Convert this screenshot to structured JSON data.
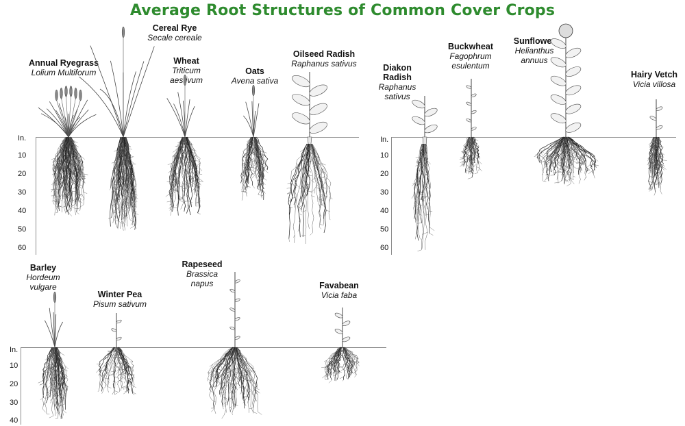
{
  "title": "Average Root Structures of Common Cover Crops",
  "depth_axis": {
    "unit": "In.",
    "ticks": [
      "10",
      "20",
      "30",
      "40",
      "50",
      "60"
    ],
    "ticks_short": [
      "10",
      "20",
      "30",
      "40"
    ]
  },
  "crops": [
    {
      "name": "Annual Ryegrass",
      "scientific": "Lolium Multiforum"
    },
    {
      "name": "Cereal Rye",
      "scientific": "Secale cereale"
    },
    {
      "name": "Wheat",
      "scientific_1": "Triticum",
      "scientific_2": "aestivum"
    },
    {
      "name": "Oats",
      "scientific": "Avena sativa"
    },
    {
      "name": "Oilseed Radish",
      "scientific": "Raphanus sativus"
    },
    {
      "name_1": "Diakon",
      "name_2": "Radish",
      "scientific_1": "Raphanus",
      "scientific_2": "sativus"
    },
    {
      "name": "Buckwheat",
      "scientific_1": "Fagophrum",
      "scientific_2": "esulentum"
    },
    {
      "name": "Sunflower",
      "scientific_1": "Helianthus",
      "scientific_2": "annuus"
    },
    {
      "name": "Hairy Vetch",
      "scientific": "Vicia villosa"
    },
    {
      "name": "Barley",
      "scientific_1": "Hordeum",
      "scientific_2": "vulgare"
    },
    {
      "name": "Winter Pea",
      "scientific": "Pisum sativum"
    },
    {
      "name": "Rapeseed",
      "scientific_1": "Brassica",
      "scientific_2": "napus"
    },
    {
      "name": "Favabean",
      "scientific": "Vicia faba"
    }
  ]
}
